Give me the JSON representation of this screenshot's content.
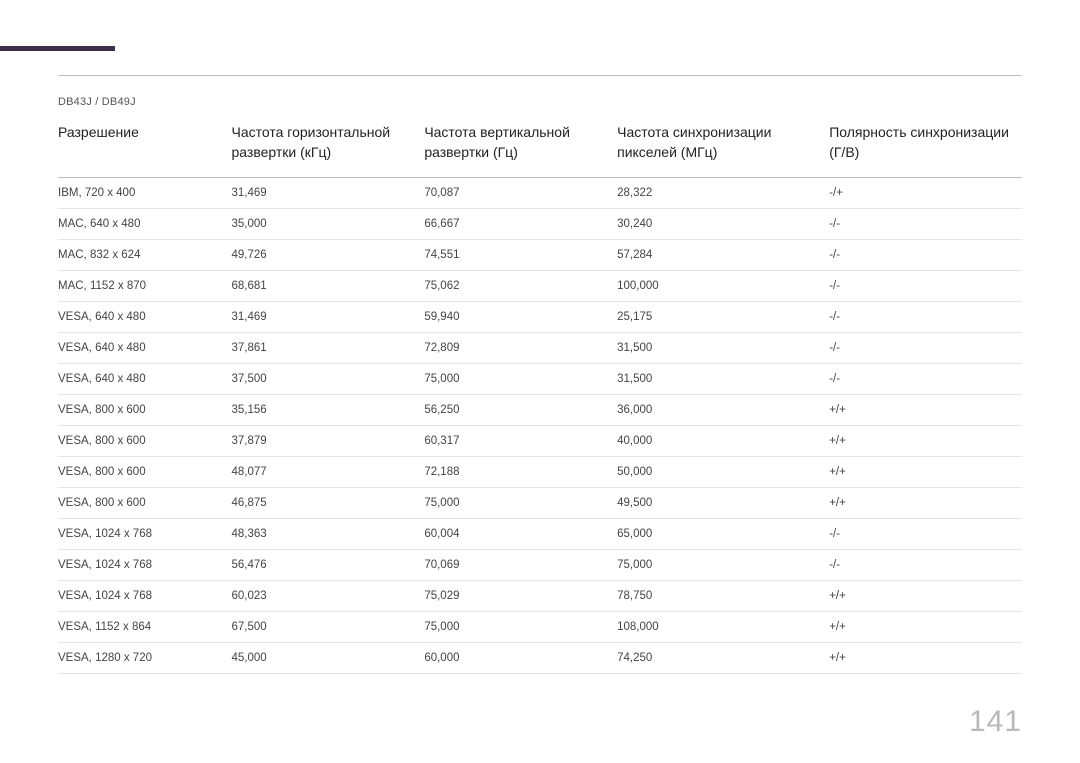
{
  "accent_bar_color": "#3b2e4a",
  "model": "DB43J / DB49J",
  "page_number": "141",
  "table": {
    "columns": [
      "Разрешение",
      "Частота горизонтальной развертки (кГц)",
      "Частота вертикальной развертки (Гц)",
      "Частота синхронизации пикселей (МГц)",
      "Полярность синхронизации (Г/В)"
    ],
    "column_widths_pct": [
      18,
      20,
      20,
      22,
      20
    ],
    "header_fontsize": 14,
    "cell_fontsize": 11.5,
    "header_color": "#222222",
    "cell_color": "#444444",
    "border_color": "#bdbdbd",
    "row_border_color": "#e4e4e4",
    "rows": [
      [
        "IBM, 720 x 400",
        "31,469",
        "70,087",
        "28,322",
        "-/+"
      ],
      [
        "MAC, 640 x 480",
        "35,000",
        "66,667",
        "30,240",
        "-/-"
      ],
      [
        "MAC, 832 x 624",
        "49,726",
        "74,551",
        "57,284",
        "-/-"
      ],
      [
        "MAC, 1152 x 870",
        "68,681",
        "75,062",
        "100,000",
        "-/-"
      ],
      [
        "VESA, 640 x 480",
        "31,469",
        "59,940",
        "25,175",
        "-/-"
      ],
      [
        "VESA, 640 x 480",
        "37,861",
        "72,809",
        "31,500",
        "-/-"
      ],
      [
        "VESA, 640 x 480",
        "37,500",
        "75,000",
        "31,500",
        "-/-"
      ],
      [
        "VESA, 800 x 600",
        "35,156",
        "56,250",
        "36,000",
        "+/+"
      ],
      [
        "VESA, 800 x 600",
        "37,879",
        "60,317",
        "40,000",
        "+/+"
      ],
      [
        "VESA, 800 x 600",
        "48,077",
        "72,188",
        "50,000",
        "+/+"
      ],
      [
        "VESA, 800 x 600",
        "46,875",
        "75,000",
        "49,500",
        "+/+"
      ],
      [
        "VESA, 1024 x 768",
        "48,363",
        "60,004",
        "65,000",
        "-/-"
      ],
      [
        "VESA, 1024 x 768",
        "56,476",
        "70,069",
        "75,000",
        "-/-"
      ],
      [
        "VESA, 1024 x 768",
        "60,023",
        "75,029",
        "78,750",
        "+/+"
      ],
      [
        "VESA, 1152 x 864",
        "67,500",
        "75,000",
        "108,000",
        "+/+"
      ],
      [
        "VESA, 1280 x 720",
        "45,000",
        "60,000",
        "74,250",
        "+/+"
      ]
    ]
  }
}
